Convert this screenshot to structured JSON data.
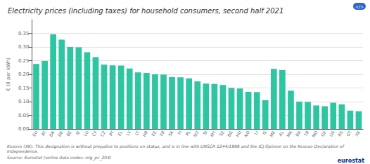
{
  "chart_data": {
    "type": "bar",
    "title": "Electricity prices (including taxes) for household consumers, second half 2021",
    "ylabel": "€ (0 per kWh)",
    "annotations": [
      "Kosovo (XK): This designation is without prejudice to positions on status, and is in line with UNSCR 1244/1999 and the ICJ Opinion on the Kosovo Declaration of Independence.",
      "Source: Eurostat (online data codes: nrg_pc_204)",
      "eurostat",
      "</>"
    ],
    "categories": [
      "EU",
      "AT",
      "DK",
      "DE",
      "BE",
      "IE",
      "LU",
      "CY",
      "CZ",
      "PT",
      "EL",
      "LV",
      "LT",
      "HR",
      "EE",
      "FR",
      "SK",
      "FI",
      "PL",
      "SI2",
      "SI",
      "MT",
      "SE",
      "BG",
      "HU",
      "NO",
      "LI",
      "IS",
      "ME",
      "AL",
      "MK",
      "BA",
      "TR",
      "MD",
      "GE",
      "UA",
      "RS",
      "GT",
      "XK"
    ],
    "values": [
      0.238,
      0.249,
      0.346,
      0.327,
      0.3,
      0.299,
      0.281,
      0.263,
      0.235,
      0.233,
      0.232,
      0.221,
      0.207,
      0.205,
      0.2,
      0.199,
      0.19,
      0.189,
      0.185,
      0.174,
      0.166,
      0.165,
      0.161,
      0.15,
      0.148,
      0.136,
      0.135,
      0.105,
      0.22,
      0.216,
      0.14,
      0.1,
      0.099,
      0.086,
      0.083,
      0.096,
      0.09,
      0.067,
      0.065
    ],
    "color": "#2DC5A2",
    "ylim": [
      0,
      0.4
    ],
    "yticks": [
      {
        "value": 0,
        "label": "0.00"
      },
      {
        "value": 0.05,
        "label": "0.05"
      },
      {
        "value": 0.1,
        "label": "0.10"
      },
      {
        "value": 0.15,
        "label": "0.15"
      },
      {
        "value": 0.2,
        "label": "0.20"
      },
      {
        "value": 0.25,
        "label": "0.25"
      },
      {
        "value": 0.3,
        "label": "0.30"
      },
      {
        "value": 0.35,
        "label": "0.35"
      }
    ],
    "grid": true
  }
}
